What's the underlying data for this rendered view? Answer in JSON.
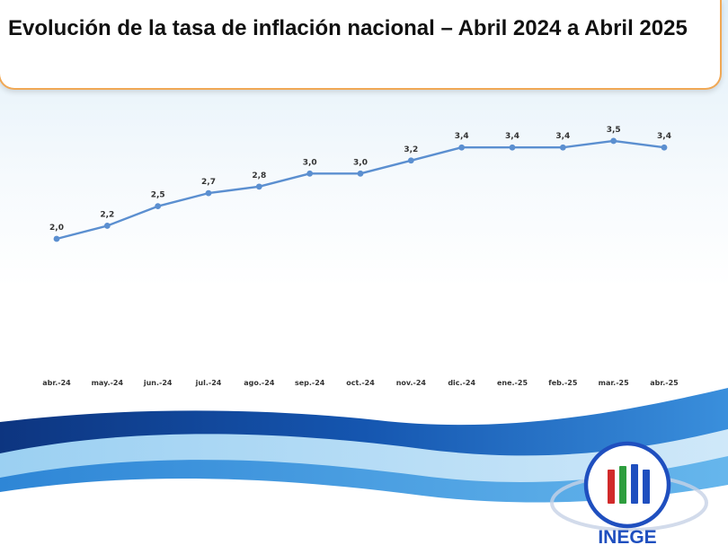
{
  "title": "Evolución de la tasa de inflación nacional – Abril 2024 a Abril 2025",
  "chart_data": {
    "type": "line",
    "title": "Evolución de la tasa de inflación nacional – Abril 2024 a Abril 2025",
    "categories": [
      "abr.-24",
      "may.-24",
      "jun.-24",
      "jul.-24",
      "ago.-24",
      "sep.-24",
      "oct.-24",
      "nov.-24",
      "dic.-24",
      "ene.-25",
      "feb.-25",
      "mar.-25",
      "abr.-25"
    ],
    "series": [
      {
        "values": [
          2.0,
          2.2,
          2.5,
          2.7,
          2.8,
          3.0,
          3.0,
          3.2,
          3.4,
          3.4,
          3.4,
          3.5,
          3.4
        ],
        "labels": [
          "2,0",
          "2,2",
          "2,5",
          "2,7",
          "2,8",
          "3,0",
          "3,0",
          "3,2",
          "3,4",
          "3,4",
          "3,4",
          "3,5",
          "3,4"
        ],
        "color": "#5b8fd0"
      }
    ],
    "grid": false,
    "legend": "none"
  },
  "logo": {
    "text": "INEGE",
    "colors": {
      "ring": "#1f4fbf",
      "red": "#d12a2a",
      "green": "#2e9e3e",
      "blue": "#1f4fbf"
    }
  },
  "colors": {
    "line": "#5b8fd0",
    "title_border": "#f0a855",
    "wave_dark": "#0f3f8e",
    "wave_mid": "#2f7cd0",
    "wave_light": "#8cc6ef"
  }
}
